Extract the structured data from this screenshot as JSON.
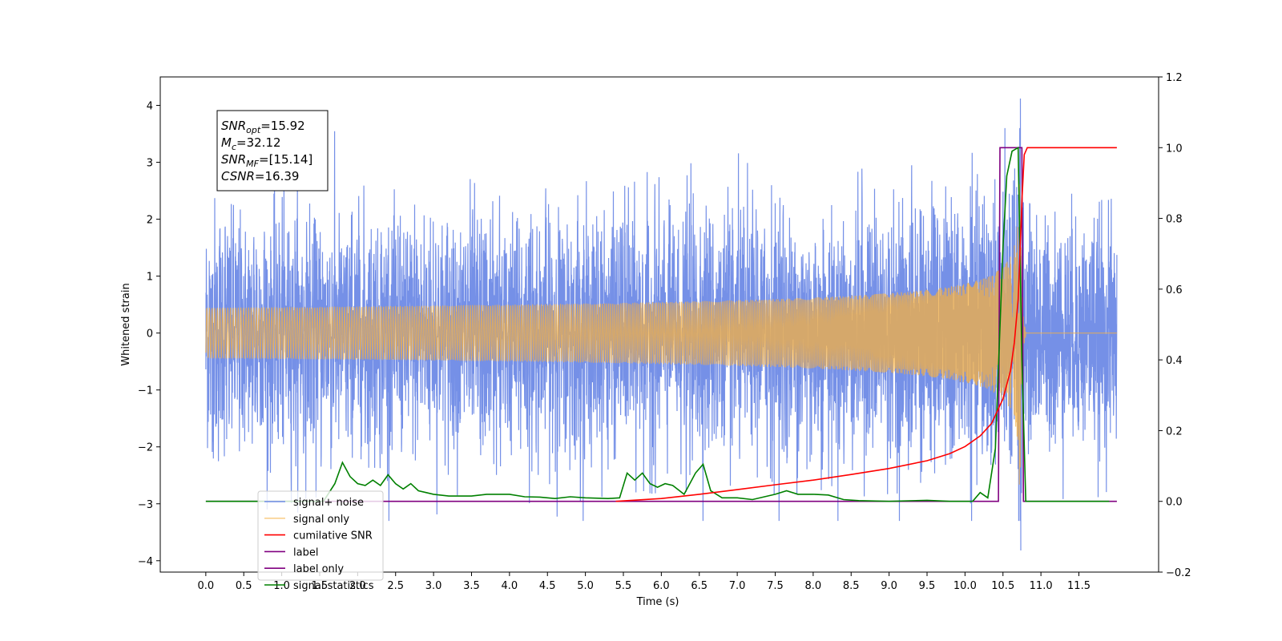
{
  "chart_data": {
    "type": "line",
    "title": "",
    "xlabel": "Time (s)",
    "ylabel": "Whitened strain",
    "ylabel_right": "",
    "xlim": [
      -0.6,
      12.55
    ],
    "ylim": [
      -4.2,
      4.5
    ],
    "ylim_right": [
      -0.2,
      1.2
    ],
    "x_ticks": [
      "0.0",
      "0.5",
      "1.0",
      "1.5",
      "2.0",
      "2.5",
      "3.0",
      "3.5",
      "4.0",
      "4.5",
      "5.0",
      "5.5",
      "6.0",
      "6.5",
      "7.0",
      "7.5",
      "8.0",
      "8.5",
      "9.0",
      "9.5",
      "10.0",
      "10.5",
      "11.0",
      "11.5"
    ],
    "y_ticks": [
      4,
      3,
      2,
      1,
      0,
      -1,
      -2,
      -3,
      -4
    ],
    "y_ticks_right": [
      "1.2",
      "1.0",
      "0.8",
      "0.6",
      "0.4",
      "0.2",
      "0.0",
      "−0.2"
    ],
    "grid": false,
    "legend_position": "lower-left",
    "annotation": {
      "lines": [
        {
          "base": "SNR",
          "sub": "opt",
          "rest": "=15.92"
        },
        {
          "base": "M",
          "sub": "c",
          "rest": "=32.12"
        },
        {
          "base": "SNR",
          "sub": "MF",
          "rest": "=[15.14]"
        },
        {
          "base": "CSNR",
          "sub": "",
          "rest": "=16.39"
        }
      ]
    },
    "series": [
      {
        "name": "signal+ noise",
        "axis": "left",
        "color": "#6e8ae6",
        "description_values": {
          "x_start": 0.0,
          "x_end": 12.0,
          "noise_envelope": [
            -2.8,
            2.5
          ],
          "peak_max": 4.12,
          "peak_min": -3.82
        }
      },
      {
        "name": "signal only",
        "axis": "left",
        "color": "#f5b041",
        "chirp": {
          "x_start": 0.0,
          "merger_time": 10.72,
          "x_end": 12.0,
          "peak_amplitude": 3.55,
          "ringdown_end": 10.8
        }
      },
      {
        "name": "cumilative SNR",
        "axis": "right",
        "color": "#ff0000",
        "points": [
          [
            5.4,
            0.0
          ],
          [
            6.0,
            0.008
          ],
          [
            6.5,
            0.02
          ],
          [
            7.0,
            0.033
          ],
          [
            7.5,
            0.047
          ],
          [
            8.0,
            0.06
          ],
          [
            8.5,
            0.076
          ],
          [
            9.0,
            0.093
          ],
          [
            9.5,
            0.115
          ],
          [
            9.8,
            0.135
          ],
          [
            10.0,
            0.155
          ],
          [
            10.2,
            0.185
          ],
          [
            10.35,
            0.22
          ],
          [
            10.5,
            0.29
          ],
          [
            10.6,
            0.37
          ],
          [
            10.65,
            0.45
          ],
          [
            10.7,
            0.57
          ],
          [
            10.72,
            0.68
          ],
          [
            10.75,
            0.85
          ],
          [
            10.78,
            0.98
          ],
          [
            10.82,
            1.0
          ],
          [
            12.0,
            1.0
          ]
        ]
      },
      {
        "name": "label",
        "axis": "right",
        "color": "#800080",
        "points": [
          [
            0.0,
            0.0
          ],
          [
            10.44,
            0.0
          ],
          [
            10.46,
            1.0
          ],
          [
            10.75,
            1.0
          ],
          [
            10.77,
            0.0
          ],
          [
            12.0,
            0.0
          ]
        ]
      },
      {
        "name": "label only",
        "axis": "right",
        "color": "#800080",
        "points": []
      },
      {
        "name": "signal statistics",
        "axis": "right",
        "color": "#008000",
        "points": [
          [
            0.0,
            0.0
          ],
          [
            1.55,
            0.0
          ],
          [
            1.7,
            0.05
          ],
          [
            1.8,
            0.11
          ],
          [
            1.9,
            0.07
          ],
          [
            2.0,
            0.05
          ],
          [
            2.1,
            0.045
          ],
          [
            2.2,
            0.06
          ],
          [
            2.3,
            0.045
          ],
          [
            2.4,
            0.075
          ],
          [
            2.5,
            0.05
          ],
          [
            2.6,
            0.035
          ],
          [
            2.7,
            0.05
          ],
          [
            2.8,
            0.03
          ],
          [
            2.9,
            0.025
          ],
          [
            3.0,
            0.02
          ],
          [
            3.2,
            0.015
          ],
          [
            3.5,
            0.015
          ],
          [
            3.7,
            0.02
          ],
          [
            4.0,
            0.02
          ],
          [
            4.2,
            0.013
          ],
          [
            4.4,
            0.012
          ],
          [
            4.6,
            0.008
          ],
          [
            4.8,
            0.013
          ],
          [
            5.0,
            0.01
          ],
          [
            5.3,
            0.008
          ],
          [
            5.45,
            0.01
          ],
          [
            5.55,
            0.08
          ],
          [
            5.65,
            0.06
          ],
          [
            5.75,
            0.08
          ],
          [
            5.85,
            0.05
          ],
          [
            5.95,
            0.04
          ],
          [
            6.05,
            0.05
          ],
          [
            6.15,
            0.045
          ],
          [
            6.3,
            0.02
          ],
          [
            6.45,
            0.08
          ],
          [
            6.55,
            0.105
          ],
          [
            6.65,
            0.03
          ],
          [
            6.8,
            0.01
          ],
          [
            7.0,
            0.01
          ],
          [
            7.2,
            0.005
          ],
          [
            7.5,
            0.02
          ],
          [
            7.65,
            0.03
          ],
          [
            7.8,
            0.02
          ],
          [
            8.0,
            0.02
          ],
          [
            8.2,
            0.018
          ],
          [
            8.4,
            0.005
          ],
          [
            8.6,
            0.002
          ],
          [
            9.0,
            0.0
          ],
          [
            9.5,
            0.003
          ],
          [
            9.8,
            0.0
          ],
          [
            10.1,
            0.0
          ],
          [
            10.2,
            0.025
          ],
          [
            10.3,
            0.01
          ],
          [
            10.4,
            0.15
          ],
          [
            10.5,
            0.72
          ],
          [
            10.55,
            0.92
          ],
          [
            10.62,
            0.99
          ],
          [
            10.7,
            1.0
          ],
          [
            10.75,
            0.4
          ],
          [
            10.8,
            0.0
          ],
          [
            11.9,
            0.0
          ]
        ]
      }
    ]
  }
}
